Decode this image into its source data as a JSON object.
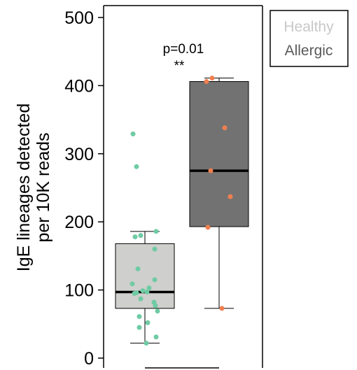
{
  "chart_data": {
    "type": "box",
    "ylabel": [
      "IgE lineages detected",
      "per 10K reads"
    ],
    "ylim": [
      0,
      500
    ],
    "yticks": [
      0,
      100,
      200,
      300,
      400,
      500
    ],
    "grid": false,
    "legend_position": "top-right",
    "annotation": {
      "text": "p=0.01",
      "significance": "**"
    },
    "series": [
      {
        "name": "Healthy",
        "box_color": "#cfcfcd",
        "text_color": "#c8c8c8",
        "point_color": "#6fcba4",
        "whisker_low": 22,
        "q1": 73,
        "median": 97,
        "q3": 168,
        "whisker_high": 186,
        "points": [
          329,
          281,
          186,
          178,
          180,
          160,
          131,
          115,
          109,
          103,
          99,
          96,
          95,
          97,
          87,
          82,
          77,
          69,
          61,
          52,
          45,
          31,
          22
        ]
      },
      {
        "name": "Allergic",
        "box_color": "#727272",
        "text_color": "#5a5a5a",
        "point_color": "#f07f50",
        "whisker_low": 73,
        "q1": 193,
        "median": 275,
        "q3": 406,
        "whisker_high": 411,
        "points": [
          411,
          406,
          338,
          275,
          237,
          192,
          73
        ]
      }
    ]
  }
}
